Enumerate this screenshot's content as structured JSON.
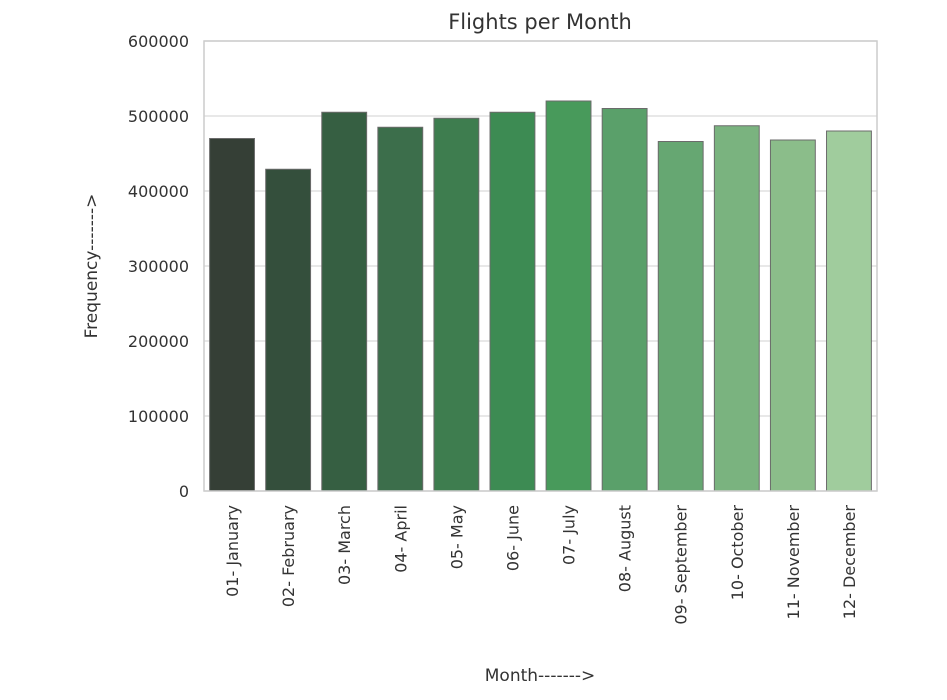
{
  "chart_data": {
    "type": "bar",
    "title": "Flights per Month",
    "xlabel": "Month------->",
    "ylabel": "Frequency------->",
    "categories": [
      "01- January",
      "02- February",
      "03- March",
      "04- April",
      "05- May",
      "06- June",
      "07- July",
      "08- August",
      "09- September",
      "10- October",
      "11- November",
      "12- December"
    ],
    "values": [
      470000,
      429000,
      505000,
      485000,
      497000,
      505000,
      520000,
      510000,
      466000,
      487000,
      468000,
      480000
    ],
    "colors": [
      "#353f36",
      "#344f3c",
      "#365f42",
      "#3c6e4b",
      "#3e7d4f",
      "#3d8b53",
      "#489a5b",
      "#5aa06a",
      "#66a772",
      "#7ab37f",
      "#8bbd8a",
      "#a0cc9d"
    ],
    "ylim": [
      0,
      600000
    ],
    "yticks": [
      0,
      100000,
      200000,
      300000,
      400000,
      500000,
      600000
    ],
    "ytick_labels": [
      "0",
      "100000",
      "200000",
      "300000",
      "400000",
      "500000",
      "600000"
    ],
    "grid": true,
    "grid_axis": "y",
    "grid_color": "#d9d9d9",
    "bar_edge_color": "#6b6b6b"
  }
}
